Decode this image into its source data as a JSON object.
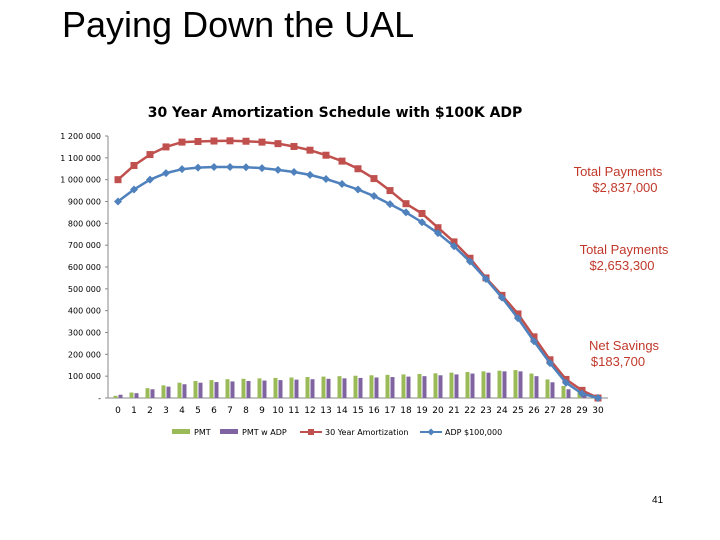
{
  "slide": {
    "title": "Paying Down the UAL",
    "page_number": "41"
  },
  "colors": {
    "pmt": "#9bbb59",
    "pmt_adp": "#8064a2",
    "amort": "#c0504d",
    "adp": "#4f81bd",
    "annotation": "#c0392b"
  },
  "annotations": {
    "total_payments_1_label": "Total Payments",
    "total_payments_1_value": "$2,837,000",
    "total_payments_2_label": "Total Payments",
    "total_payments_2_value": "$2,653,300",
    "net_savings_label": "Net Savings",
    "net_savings_value": "$183,700"
  },
  "chart_data": {
    "type": "line",
    "title": "30 Year Amortization Schedule with $100K ADP",
    "xlabel": "",
    "ylabel": "",
    "ylim": [
      0,
      1200000
    ],
    "yticks": [
      {
        "value": 0,
        "label": "-"
      },
      {
        "value": 100000,
        "label": "100 000"
      },
      {
        "value": 200000,
        "label": "200 000"
      },
      {
        "value": 300000,
        "label": "300 000"
      },
      {
        "value": 400000,
        "label": "400 000"
      },
      {
        "value": 500000,
        "label": "500 000"
      },
      {
        "value": 600000,
        "label": "600 000"
      },
      {
        "value": 700000,
        "label": "700 000"
      },
      {
        "value": 800000,
        "label": "800 000"
      },
      {
        "value": 900000,
        "label": "900 000"
      },
      {
        "value": 1000000,
        "label": "1 000 000"
      },
      {
        "value": 1100000,
        "label": "1 100 000"
      },
      {
        "value": 1200000,
        "label": "1 200 000"
      }
    ],
    "categories": [
      "0",
      "1",
      "2",
      "3",
      "4",
      "5",
      "6",
      "7",
      "8",
      "9",
      "10",
      "11",
      "12",
      "13",
      "14",
      "15",
      "16",
      "17",
      "18",
      "19",
      "20",
      "21",
      "22",
      "23",
      "24",
      "25",
      "26",
      "27",
      "28",
      "29",
      "30"
    ],
    "series": [
      {
        "name": "PMT",
        "kind": "bar",
        "color": "#9bbb59",
        "values": [
          10000,
          25000,
          45000,
          58000,
          70000,
          78000,
          82000,
          86000,
          88000,
          90000,
          92000,
          94000,
          96000,
          98000,
          100000,
          102000,
          104000,
          106000,
          108000,
          110000,
          113000,
          116000,
          119000,
          122000,
          125000,
          128000,
          112000,
          85000,
          55000,
          28000,
          5000
        ]
      },
      {
        "name": "PMT w ADP",
        "kind": "bar",
        "color": "#8064a2",
        "values": [
          15000,
          22000,
          40000,
          52000,
          63000,
          70000,
          73000,
          76000,
          78000,
          80000,
          82000,
          84000,
          86000,
          88000,
          90000,
          92000,
          94000,
          96000,
          98000,
          100000,
          104000,
          108000,
          112000,
          116000,
          122000,
          122000,
          100000,
          72000,
          40000,
          15000,
          2000
        ]
      },
      {
        "name": "30 Year Amortization",
        "kind": "line",
        "color": "#c0504d",
        "values": [
          1000000,
          1065000,
          1115000,
          1150000,
          1172000,
          1175000,
          1177000,
          1178000,
          1176000,
          1172000,
          1165000,
          1152000,
          1135000,
          1112000,
          1085000,
          1050000,
          1005000,
          950000,
          890000,
          845000,
          780000,
          715000,
          640000,
          550000,
          470000,
          385000,
          280000,
          175000,
          85000,
          35000,
          0
        ]
      },
      {
        "name": "ADP $100,000",
        "kind": "line",
        "color": "#4f81bd",
        "values": [
          900000,
          955000,
          1000000,
          1030000,
          1048000,
          1055000,
          1058000,
          1058000,
          1057000,
          1053000,
          1045000,
          1035000,
          1022000,
          1003000,
          980000,
          955000,
          925000,
          888000,
          850000,
          805000,
          755000,
          695000,
          625000,
          545000,
          460000,
          365000,
          260000,
          160000,
          70000,
          20000,
          0
        ]
      }
    ],
    "legend": [
      "PMT",
      "PMT w ADP",
      "30 Year Amortization",
      "ADP $100,000"
    ],
    "legend_position": "bottom",
    "grid": false
  }
}
